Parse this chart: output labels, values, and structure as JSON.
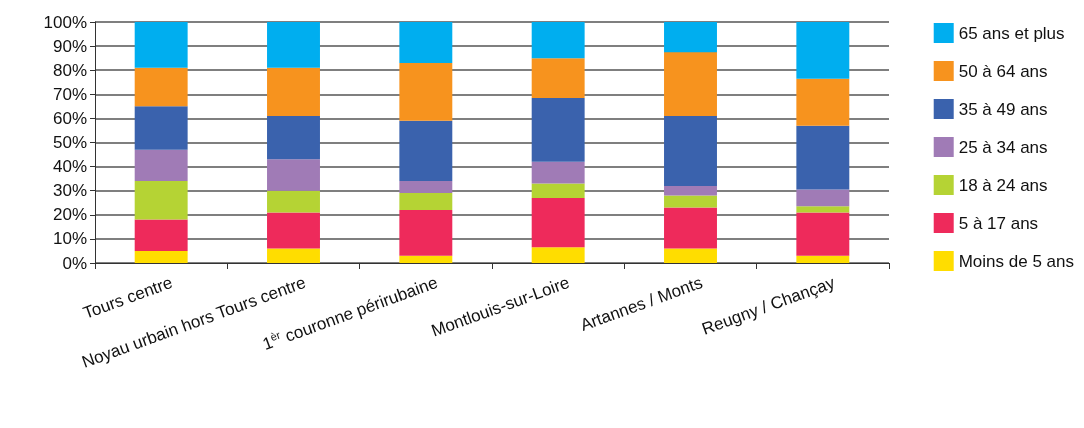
{
  "chart_data": {
    "type": "bar",
    "stacked": true,
    "categories": [
      "Tours centre",
      "Noyau urbain hors Tours centre",
      "1$^{èr}$ couronne périrubaine",
      "Montlouis-sur-Loire",
      "Artannes / Monts",
      "Reugny / Chançay"
    ],
    "series": [
      {
        "name": "Moins de 5 ans",
        "color": "#ffdd00",
        "values": [
          5,
          6,
          3,
          6.5,
          6,
          3
        ]
      },
      {
        "name": "5 à 17 ans",
        "color": "#ee2a5b",
        "values": [
          13,
          15,
          19,
          20.5,
          17,
          18
        ]
      },
      {
        "name": "18 à 24 ans",
        "color": "#b5d334",
        "values": [
          16,
          9,
          7,
          6,
          5,
          2.5
        ]
      },
      {
        "name": "25 à 34 ans",
        "color": "#a07bb6",
        "values": [
          13,
          13,
          5,
          9,
          4,
          7
        ]
      },
      {
        "name": "35 à 49 ans",
        "color": "#3a62ad",
        "values": [
          18,
          18,
          25,
          26.5,
          29,
          26.5
        ]
      },
      {
        "name": "50 à 64 ans",
        "color": "#f7931e",
        "values": [
          16,
          20,
          24,
          16.5,
          26.5,
          19.5
        ]
      },
      {
        "name": "65 ans et plus",
        "color": "#00aeef",
        "values": [
          19,
          19,
          17,
          15,
          12.5,
          23.5
        ]
      }
    ],
    "ylim": [
      0,
      100
    ],
    "yticks": [
      {
        "value": 0,
        "label": "0%"
      },
      {
        "value": 10,
        "label": "10%"
      },
      {
        "value": 20,
        "label": "20%"
      },
      {
        "value": 30,
        "label": "30%"
      },
      {
        "value": 40,
        "label": "40%"
      },
      {
        "value": 50,
        "label": "50%"
      },
      {
        "value": 60,
        "label": "60%"
      },
      {
        "value": 70,
        "label": "70%"
      },
      {
        "value": 80,
        "label": "80%"
      },
      {
        "value": 90,
        "label": "90%"
      },
      {
        "value": 100,
        "label": "100%"
      }
    ],
    "grid": "y",
    "legend": "right"
  }
}
